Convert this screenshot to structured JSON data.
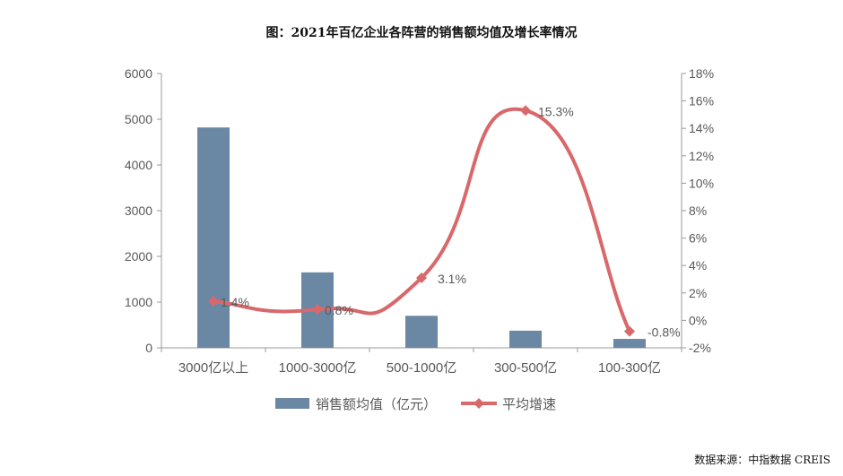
{
  "title": "图：2021年百亿企业各阵营的销售额均值及增长率情况",
  "source": "数据来源：中指数据 CREIS",
  "chart_data": {
    "type": "bar+line",
    "categories": [
      "3000亿以上",
      "1000-3000亿",
      "500-1000亿",
      "300-500亿",
      "100-300亿"
    ],
    "series": [
      {
        "name": "销售额均值（亿元）",
        "type": "bar",
        "axis": "left",
        "color": "#6a88a4",
        "values": [
          4820,
          1650,
          700,
          375,
          195
        ]
      },
      {
        "name": "平均增速",
        "type": "line",
        "axis": "right",
        "color": "#d9686b",
        "values": [
          1.4,
          0.8,
          3.1,
          15.3,
          -0.8
        ],
        "labels": [
          "1.4%",
          "0.8%",
          "3.1%",
          "15.3%",
          "-0.8%"
        ]
      }
    ],
    "left_axis": {
      "range": [
        0,
        6000
      ],
      "ticks": [
        "0",
        "1000",
        "2000",
        "3000",
        "4000",
        "5000",
        "6000"
      ]
    },
    "right_axis": {
      "range": [
        -2,
        18
      ],
      "ticks": [
        "-2%",
        "0%",
        "2%",
        "4%",
        "6%",
        "8%",
        "10%",
        "12%",
        "14%",
        "16%",
        "18%"
      ]
    },
    "legend_position": "bottom",
    "grid": false
  }
}
